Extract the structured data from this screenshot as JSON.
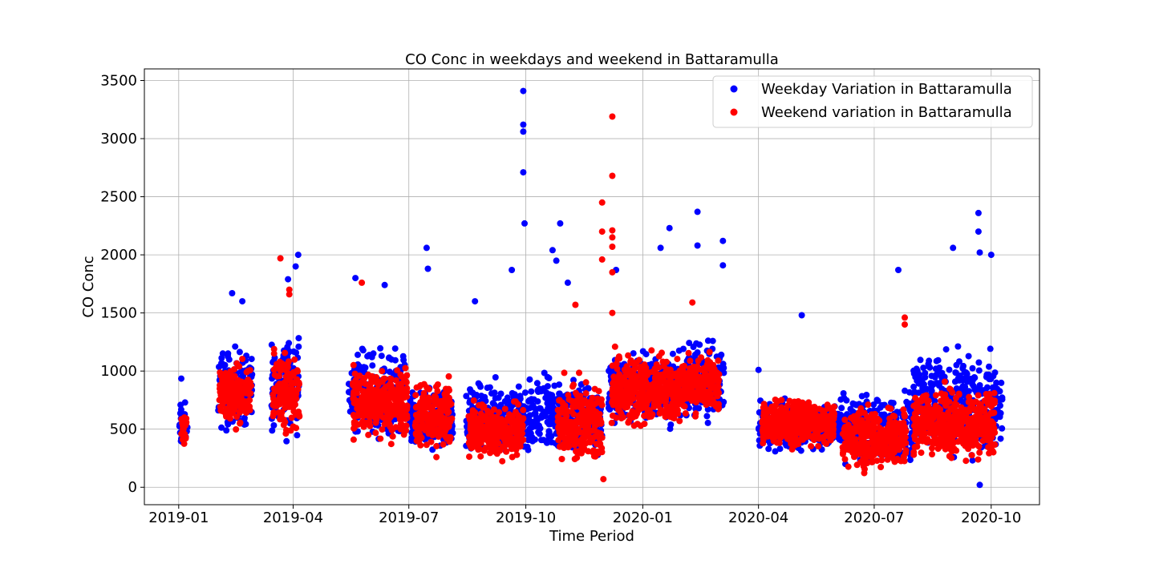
{
  "chart_data": {
    "type": "scatter",
    "title": "CO Conc in weekdays and weekend in Battaramulla",
    "xlabel": "Time Period",
    "ylabel": "CO Conc",
    "xlim": [
      "2018-12-05",
      "2020-11-08"
    ],
    "ylim": [
      -150,
      3600
    ],
    "x_ticks": [
      "2019-01",
      "2019-04",
      "2019-07",
      "2019-10",
      "2020-01",
      "2020-04",
      "2020-07",
      "2020-10"
    ],
    "y_ticks": [
      0,
      500,
      1000,
      1500,
      2000,
      2500,
      3000,
      3500
    ],
    "grid": true,
    "legend_position": "top-right",
    "series": [
      {
        "name": "Weekday Variation in Battaramulla",
        "color": "#0000ff",
        "segments": [
          {
            "start": "2019-01-01",
            "end": "2019-01-08",
            "low": 250,
            "high": 800
          },
          {
            "start": "2019-02-01",
            "end": "2019-02-28",
            "low": 400,
            "high": 1300
          },
          {
            "start": "2019-03-15",
            "end": "2019-04-06",
            "low": 300,
            "high": 1500
          },
          {
            "start": "2019-05-14",
            "end": "2019-06-28",
            "low": 350,
            "high": 1300
          },
          {
            "start": "2019-07-01",
            "end": "2019-08-05",
            "low": 230,
            "high": 900
          },
          {
            "start": "2019-08-15",
            "end": "2019-09-28",
            "low": 180,
            "high": 1000
          },
          {
            "start": "2019-09-29",
            "end": "2019-10-31",
            "low": 200,
            "high": 1050
          },
          {
            "start": "2019-11-01",
            "end": "2019-11-30",
            "low": 150,
            "high": 1050
          },
          {
            "start": "2019-12-05",
            "end": "2020-01-31",
            "low": 450,
            "high": 1250
          },
          {
            "start": "2020-02-01",
            "end": "2020-03-05",
            "low": 500,
            "high": 1350
          },
          {
            "start": "2020-04-01",
            "end": "2020-05-31",
            "low": 250,
            "high": 800
          },
          {
            "start": "2020-06-01",
            "end": "2020-07-31",
            "low": 120,
            "high": 900
          },
          {
            "start": "2020-08-01",
            "end": "2020-10-10",
            "low": 150,
            "high": 1300
          }
        ],
        "highlights": [
          {
            "x": "2019-01-03",
            "y": 935
          },
          {
            "x": "2019-02-12",
            "y": 1670
          },
          {
            "x": "2019-02-20",
            "y": 1600
          },
          {
            "x": "2019-03-28",
            "y": 1790
          },
          {
            "x": "2019-04-03",
            "y": 1900
          },
          {
            "x": "2019-04-05",
            "y": 2000
          },
          {
            "x": "2019-05-20",
            "y": 1800
          },
          {
            "x": "2019-06-12",
            "y": 1740
          },
          {
            "x": "2019-07-15",
            "y": 2060
          },
          {
            "x": "2019-07-16",
            "y": 1880
          },
          {
            "x": "2019-08-22",
            "y": 1600
          },
          {
            "x": "2019-09-20",
            "y": 1870
          },
          {
            "x": "2019-09-29",
            "y": 3410
          },
          {
            "x": "2019-09-29",
            "y": 3120
          },
          {
            "x": "2019-09-29",
            "y": 3060
          },
          {
            "x": "2019-09-29",
            "y": 2710
          },
          {
            "x": "2019-09-30",
            "y": 2270
          },
          {
            "x": "2019-10-22",
            "y": 2040
          },
          {
            "x": "2019-10-25",
            "y": 1950
          },
          {
            "x": "2019-10-28",
            "y": 2270
          },
          {
            "x": "2019-11-03",
            "y": 1760
          },
          {
            "x": "2019-12-11",
            "y": 1870
          },
          {
            "x": "2020-01-15",
            "y": 2060
          },
          {
            "x": "2020-01-22",
            "y": 2230
          },
          {
            "x": "2020-02-13",
            "y": 2370
          },
          {
            "x": "2020-02-13",
            "y": 2080
          },
          {
            "x": "2020-03-04",
            "y": 2120
          },
          {
            "x": "2020-03-04",
            "y": 1910
          },
          {
            "x": "2020-04-01",
            "y": 1010
          },
          {
            "x": "2020-05-05",
            "y": 1480
          },
          {
            "x": "2020-07-20",
            "y": 1870
          },
          {
            "x": "2020-09-01",
            "y": 2060
          },
          {
            "x": "2020-09-21",
            "y": 2360
          },
          {
            "x": "2020-09-21",
            "y": 2200
          },
          {
            "x": "2020-09-22",
            "y": 2020
          },
          {
            "x": "2020-10-01",
            "y": 2000
          },
          {
            "x": "2020-09-22",
            "y": 20
          }
        ]
      },
      {
        "name": "Weekend variation in Battaramulla",
        "color": "#ff0000",
        "segments": [
          {
            "start": "2019-01-03",
            "end": "2019-01-07",
            "low": 290,
            "high": 700
          },
          {
            "start": "2019-02-02",
            "end": "2019-02-27",
            "low": 450,
            "high": 1150
          },
          {
            "start": "2019-03-16",
            "end": "2019-04-06",
            "low": 380,
            "high": 1250
          },
          {
            "start": "2019-05-18",
            "end": "2019-06-30",
            "low": 350,
            "high": 1100
          },
          {
            "start": "2019-07-06",
            "end": "2019-08-04",
            "low": 230,
            "high": 1000
          },
          {
            "start": "2019-08-17",
            "end": "2019-09-29",
            "low": 170,
            "high": 800
          },
          {
            "start": "2019-10-26",
            "end": "2019-11-30",
            "low": 120,
            "high": 1000
          },
          {
            "start": "2019-12-07",
            "end": "2020-01-31",
            "low": 450,
            "high": 1250
          },
          {
            "start": "2020-02-01",
            "end": "2020-03-01",
            "low": 550,
            "high": 1200
          },
          {
            "start": "2020-04-04",
            "end": "2020-05-31",
            "low": 300,
            "high": 800
          },
          {
            "start": "2020-06-06",
            "end": "2020-07-26",
            "low": 100,
            "high": 750
          },
          {
            "start": "2020-08-01",
            "end": "2020-10-04",
            "low": 150,
            "high": 950
          }
        ],
        "highlights": [
          {
            "x": "2019-03-22",
            "y": 1970
          },
          {
            "x": "2019-03-29",
            "y": 1700
          },
          {
            "x": "2019-03-29",
            "y": 1660
          },
          {
            "x": "2019-05-25",
            "y": 1760
          },
          {
            "x": "2019-11-09",
            "y": 1570
          },
          {
            "x": "2019-11-30",
            "y": 2450
          },
          {
            "x": "2019-11-30",
            "y": 2200
          },
          {
            "x": "2019-11-30",
            "y": 1960
          },
          {
            "x": "2019-12-08",
            "y": 3190
          },
          {
            "x": "2019-12-08",
            "y": 2680
          },
          {
            "x": "2019-12-08",
            "y": 2210
          },
          {
            "x": "2019-12-08",
            "y": 2150
          },
          {
            "x": "2019-12-08",
            "y": 2070
          },
          {
            "x": "2019-12-08",
            "y": 1850
          },
          {
            "x": "2019-12-08",
            "y": 1500
          },
          {
            "x": "2019-12-01",
            "y": 70
          },
          {
            "x": "2020-02-09",
            "y": 1590
          },
          {
            "x": "2020-07-25",
            "y": 1460
          },
          {
            "x": "2020-07-25",
            "y": 1400
          }
        ]
      }
    ]
  }
}
